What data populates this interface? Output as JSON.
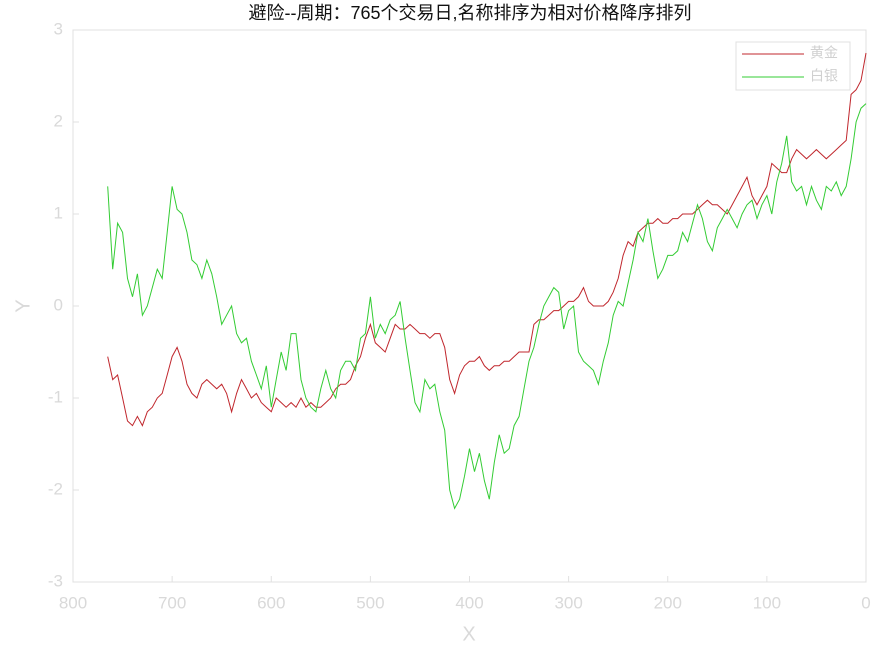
{
  "chart_data": {
    "type": "line",
    "title": "避险--周期：765个交易日,名称排序为相对价格降序排列",
    "xlabel": "X",
    "ylabel": "Y",
    "x": [
      765,
      760,
      755,
      750,
      745,
      740,
      735,
      730,
      725,
      720,
      715,
      710,
      705,
      700,
      695,
      690,
      685,
      680,
      675,
      670,
      665,
      660,
      655,
      650,
      645,
      640,
      635,
      630,
      625,
      620,
      615,
      610,
      605,
      600,
      595,
      590,
      585,
      580,
      575,
      570,
      565,
      560,
      555,
      550,
      545,
      540,
      535,
      530,
      525,
      520,
      515,
      510,
      505,
      500,
      495,
      490,
      485,
      480,
      475,
      470,
      465,
      460,
      455,
      450,
      445,
      440,
      435,
      430,
      425,
      420,
      415,
      410,
      405,
      400,
      395,
      390,
      385,
      380,
      375,
      370,
      365,
      360,
      355,
      350,
      345,
      340,
      335,
      330,
      325,
      320,
      315,
      310,
      305,
      300,
      295,
      290,
      285,
      280,
      275,
      270,
      265,
      260,
      255,
      250,
      245,
      240,
      235,
      230,
      225,
      220,
      215,
      210,
      205,
      200,
      195,
      190,
      185,
      180,
      175,
      170,
      165,
      160,
      155,
      150,
      145,
      140,
      135,
      130,
      125,
      120,
      115,
      110,
      105,
      100,
      95,
      90,
      85,
      80,
      75,
      70,
      65,
      60,
      55,
      50,
      45,
      40,
      35,
      30,
      25,
      20,
      15,
      10,
      5,
      0
    ],
    "series": [
      {
        "name": "黄金",
        "color": "#c0272d",
        "values": [
          -0.55,
          -0.8,
          -0.75,
          -1.0,
          -1.25,
          -1.3,
          -1.2,
          -1.3,
          -1.15,
          -1.1,
          -1.0,
          -0.95,
          -0.75,
          -0.55,
          -0.45,
          -0.6,
          -0.85,
          -0.95,
          -1.0,
          -0.85,
          -0.8,
          -0.85,
          -0.9,
          -0.85,
          -0.95,
          -1.15,
          -0.95,
          -0.8,
          -0.9,
          -1.0,
          -0.95,
          -1.05,
          -1.1,
          -1.15,
          -1.0,
          -1.05,
          -1.1,
          -1.05,
          -1.1,
          -1.0,
          -1.1,
          -1.05,
          -1.1,
          -1.1,
          -1.05,
          -1.0,
          -0.9,
          -0.85,
          -0.85,
          -0.8,
          -0.65,
          -0.55,
          -0.35,
          -0.2,
          -0.4,
          -0.45,
          -0.5,
          -0.35,
          -0.2,
          -0.25,
          -0.25,
          -0.2,
          -0.25,
          -0.3,
          -0.3,
          -0.35,
          -0.3,
          -0.3,
          -0.45,
          -0.8,
          -0.95,
          -0.75,
          -0.65,
          -0.6,
          -0.6,
          -0.55,
          -0.65,
          -0.7,
          -0.65,
          -0.65,
          -0.6,
          -0.6,
          -0.55,
          -0.5,
          -0.5,
          -0.5,
          -0.2,
          -0.15,
          -0.15,
          -0.1,
          -0.05,
          -0.05,
          0.0,
          0.05,
          0.05,
          0.1,
          0.2,
          0.05,
          0.0,
          0.0,
          0.0,
          0.05,
          0.15,
          0.3,
          0.55,
          0.7,
          0.65,
          0.8,
          0.85,
          0.9,
          0.9,
          0.95,
          0.9,
          0.9,
          0.95,
          0.95,
          1.0,
          1.0,
          1.0,
          1.05,
          1.1,
          1.15,
          1.1,
          1.1,
          1.05,
          1.0,
          1.1,
          1.2,
          1.3,
          1.4,
          1.2,
          1.1,
          1.2,
          1.3,
          1.55,
          1.5,
          1.45,
          1.45,
          1.6,
          1.7,
          1.65,
          1.6,
          1.65,
          1.7,
          1.65,
          1.6,
          1.65,
          1.7,
          1.75,
          1.8,
          2.3,
          2.35,
          2.45,
          2.75
        ]
      },
      {
        "name": "白银",
        "color": "#33cc33",
        "values": [
          1.3,
          0.4,
          0.9,
          0.8,
          0.3,
          0.1,
          0.35,
          -0.1,
          0.0,
          0.2,
          0.4,
          0.3,
          0.8,
          1.3,
          1.05,
          1.0,
          0.8,
          0.5,
          0.45,
          0.3,
          0.5,
          0.35,
          0.1,
          -0.2,
          -0.1,
          0.0,
          -0.3,
          -0.4,
          -0.35,
          -0.6,
          -0.75,
          -0.9,
          -0.65,
          -1.1,
          -0.8,
          -0.5,
          -0.7,
          -0.3,
          -0.3,
          -0.8,
          -1.0,
          -1.1,
          -1.15,
          -0.9,
          -0.7,
          -0.9,
          -1.0,
          -0.7,
          -0.6,
          -0.6,
          -0.7,
          -0.35,
          -0.3,
          0.1,
          -0.35,
          -0.2,
          -0.3,
          -0.15,
          -0.1,
          0.05,
          -0.35,
          -0.7,
          -1.05,
          -1.15,
          -0.8,
          -0.9,
          -0.85,
          -1.15,
          -1.35,
          -2.0,
          -2.2,
          -2.1,
          -1.85,
          -1.55,
          -1.8,
          -1.6,
          -1.9,
          -2.1,
          -1.7,
          -1.4,
          -1.6,
          -1.55,
          -1.3,
          -1.2,
          -0.9,
          -0.6,
          -0.45,
          -0.2,
          0.0,
          0.1,
          0.2,
          0.15,
          -0.25,
          -0.05,
          0.0,
          -0.5,
          -0.6,
          -0.65,
          -0.7,
          -0.85,
          -0.6,
          -0.4,
          -0.1,
          0.05,
          0.0,
          0.25,
          0.5,
          0.8,
          0.7,
          0.95,
          0.6,
          0.3,
          0.4,
          0.55,
          0.55,
          0.6,
          0.8,
          0.7,
          0.9,
          1.1,
          0.95,
          0.7,
          0.6,
          0.85,
          0.95,
          1.05,
          0.95,
          0.85,
          1.0,
          1.1,
          1.15,
          0.95,
          1.1,
          1.2,
          1.0,
          1.35,
          1.55,
          1.85,
          1.35,
          1.25,
          1.3,
          1.1,
          1.3,
          1.15,
          1.05,
          1.3,
          1.25,
          1.35,
          1.2,
          1.3,
          1.6,
          2.0,
          2.15,
          2.2
        ]
      }
    ],
    "xlim": [
      800,
      0
    ],
    "ylim": [
      -3,
      3
    ],
    "xticks": [
      800,
      700,
      600,
      500,
      400,
      300,
      200,
      100,
      0
    ],
    "yticks": [
      -3,
      -2,
      -1,
      0,
      1,
      2,
      3
    ],
    "legend": "upper right"
  }
}
